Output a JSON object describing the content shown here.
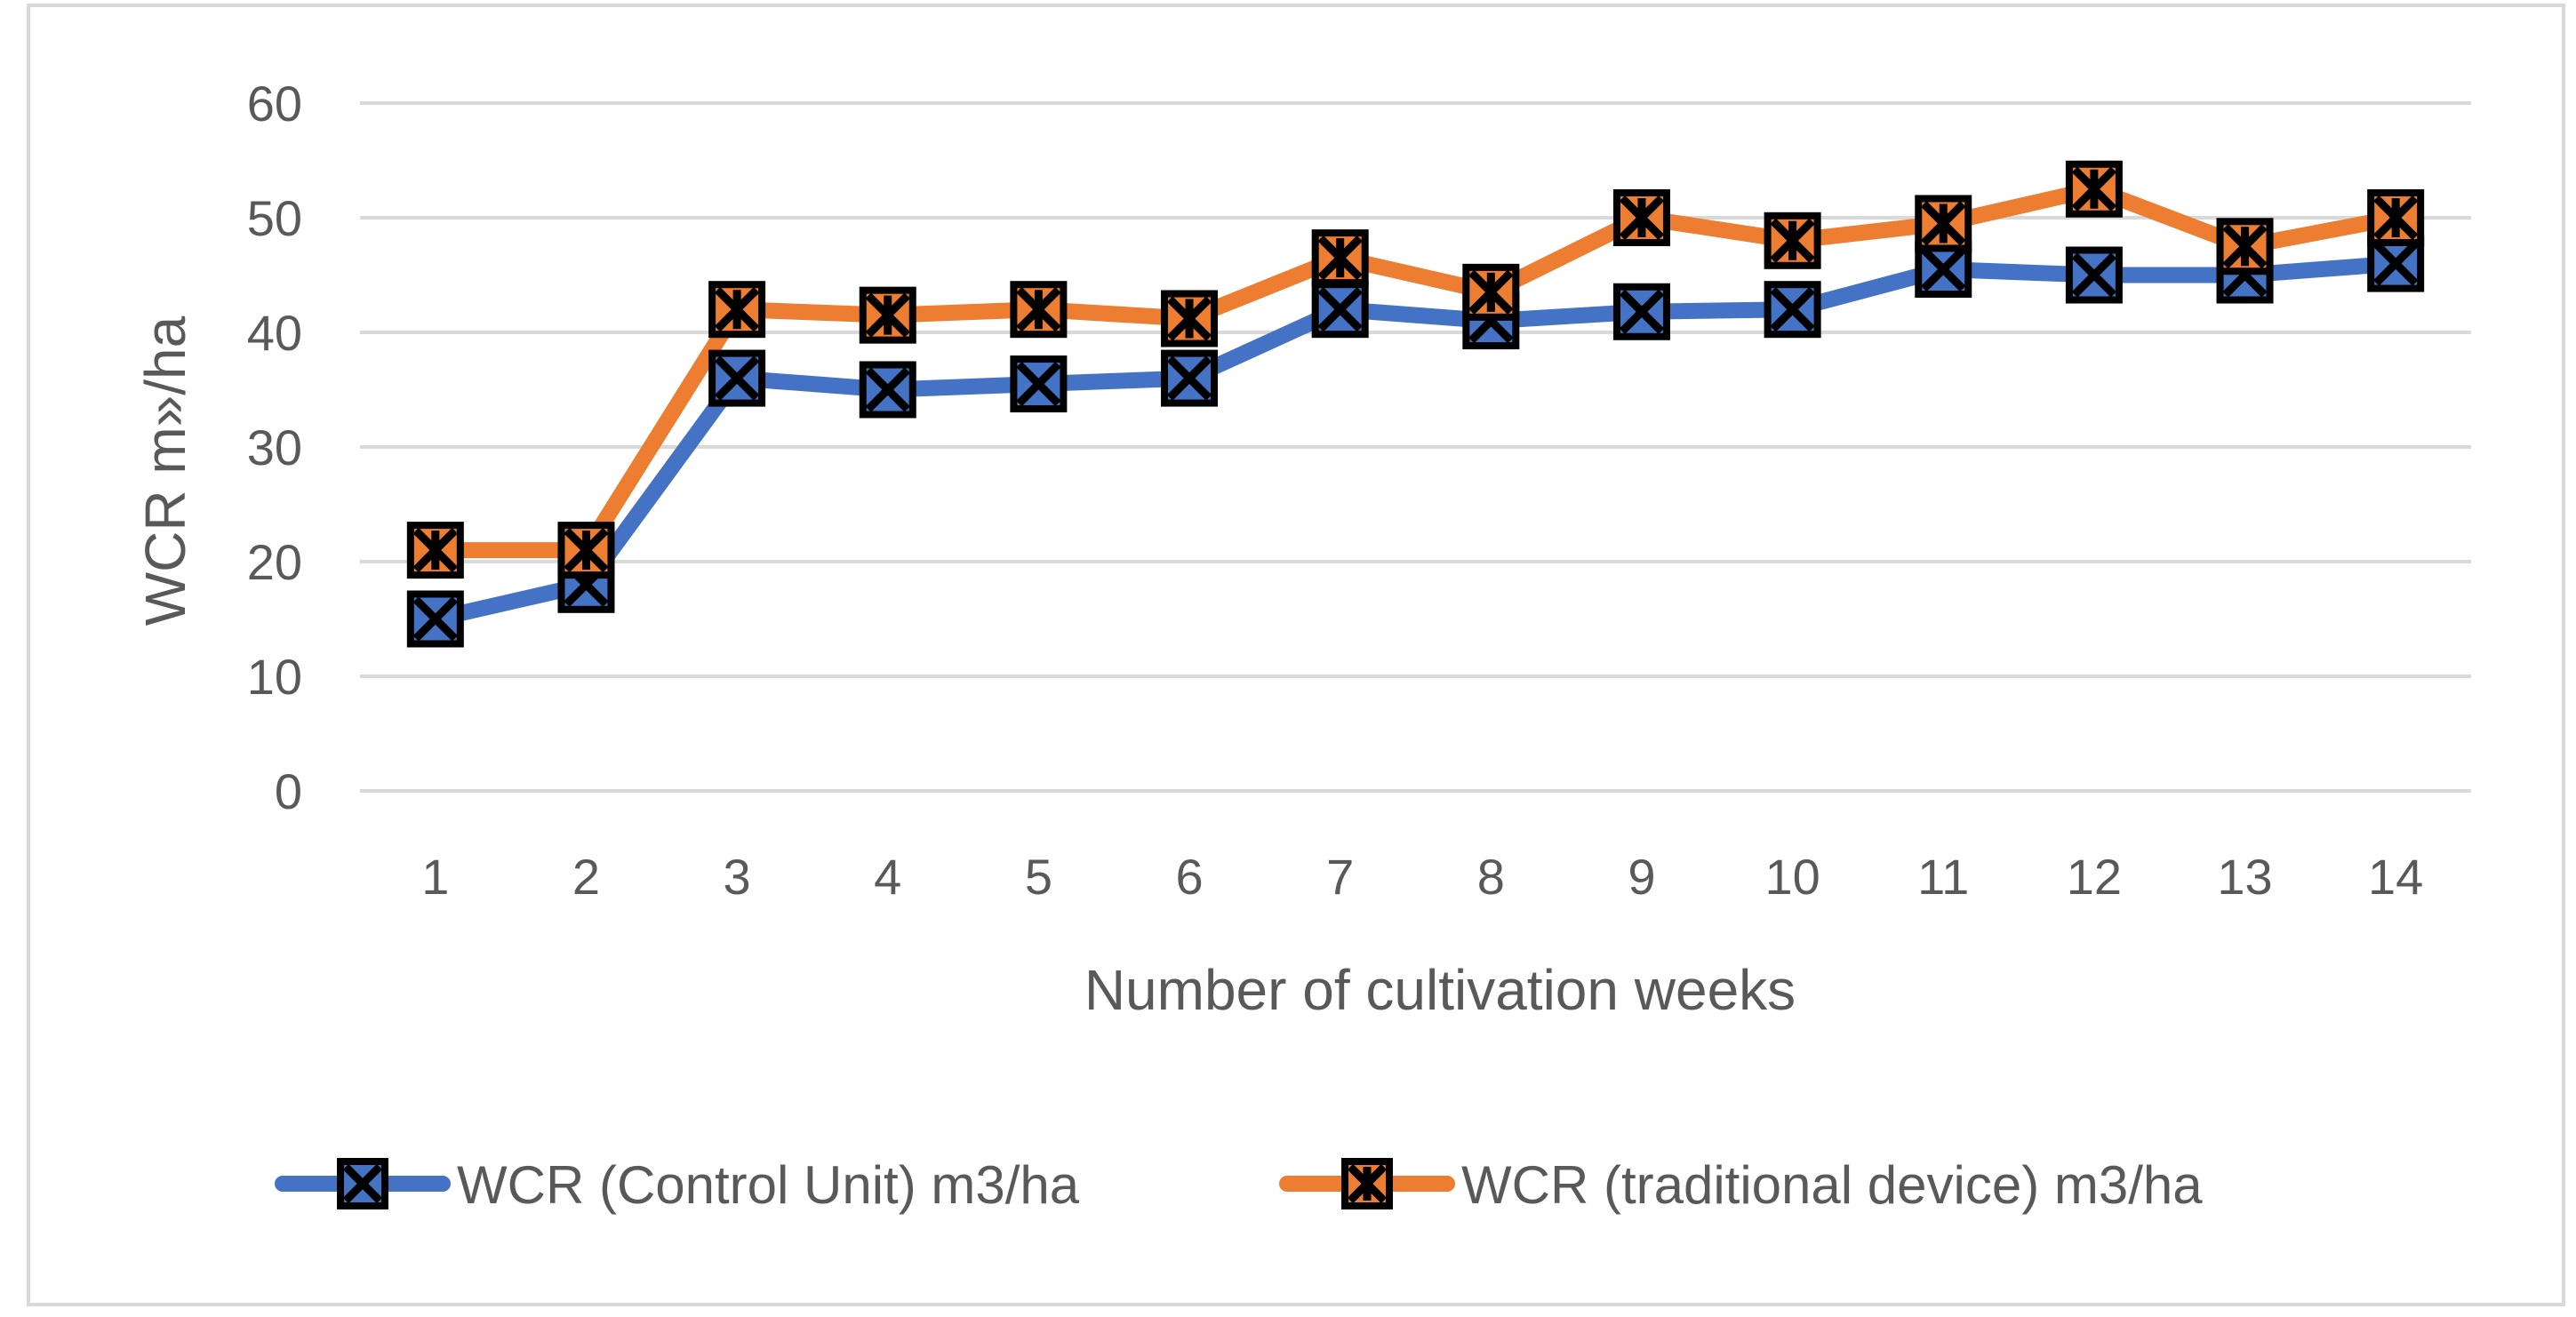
{
  "chart_data": {
    "type": "line",
    "title": "",
    "xlabel": "Number of cultivation weeks",
    "ylabel": "WCR m»/ha",
    "categories": [
      "1",
      "2",
      "3",
      "4",
      "5",
      "6",
      "7",
      "8",
      "9",
      "10",
      "11",
      "12",
      "13",
      "14"
    ],
    "ylim": [
      0,
      60
    ],
    "yticks": [
      "0",
      "10",
      "20",
      "30",
      "40",
      "50",
      "60"
    ],
    "grid": true,
    "legend_position": "bottom",
    "series": [
      {
        "name": "WCR (Control Unit) m3/ha",
        "color": "#4472c4",
        "marker": "x-square",
        "values": [
          15,
          18,
          36,
          35,
          35.5,
          36,
          42,
          41,
          41.8,
          42,
          45.5,
          45,
          45,
          46
        ]
      },
      {
        "name": "WCR (traditional device) m3/ha",
        "color": "#ed7d31",
        "marker": "star-square",
        "values": [
          21,
          21,
          42,
          41.5,
          42,
          41.2,
          46.5,
          43.5,
          50,
          48,
          49.5,
          52.5,
          47.5,
          50
        ]
      }
    ]
  }
}
